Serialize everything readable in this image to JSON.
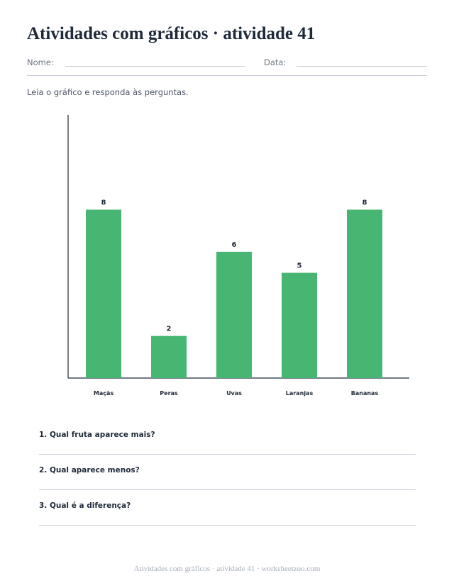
{
  "worksheet": {
    "title": "Atividades com gráficos · atividade 41",
    "name_label": "Nome:",
    "date_label": "Data:",
    "instructions": "Leia o gráfico e responda às perguntas."
  },
  "chart_data": {
    "type": "bar",
    "categories": [
      "Maçãs",
      "Peras",
      "Uvas",
      "Laranjas",
      "Bananas"
    ],
    "values": [
      8,
      2,
      6,
      5,
      8
    ],
    "ylim": [
      0,
      12.5
    ],
    "bar_color": "#48b673",
    "axis_color": "#1f2a3a",
    "grid": false,
    "legend": "none"
  },
  "questions": [
    {
      "text": "1. Qual fruta aparece mais?"
    },
    {
      "text": "2. Qual aparece menos?"
    },
    {
      "text": "3. Qual é a diferença?"
    }
  ],
  "footer": "Atividades com gráficos · atividade 41 · worksheetzoo.com"
}
